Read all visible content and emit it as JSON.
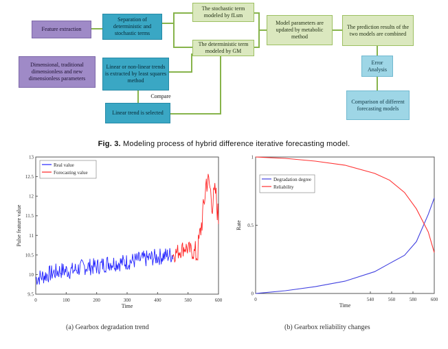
{
  "flowchart": {
    "feature_extraction": "Feature extraction",
    "parameters": "Dimensional, traditional dimensionless and new dimensionless parameters",
    "separation": "Separation of deterministic and stochastic terms",
    "linear_fit": "Linear or non-linear trends is extracted by least squares method",
    "compare": "Compare",
    "linear_selected": "Linear trend is selected",
    "stochastic_term": "The stochastic term modeled by fLsm",
    "deterministic_term": "The deterministic term modeled by GM",
    "update": "Model parameters are updated by metabolic method",
    "combined": "The prediction results of the two models are combined",
    "error_analysis": "Error Analysis",
    "comparison": "Comparison of different forecasting models"
  },
  "fig3_caption": {
    "label": "Fig. 3.",
    "text": "Modeling process of hybrid difference iterative forecasting model."
  },
  "colors": {
    "real": "#2323ff",
    "forecast": "#ff2020",
    "degradation": "#4040e0",
    "reliability": "#ff3030"
  },
  "chart_data": [
    {
      "type": "line",
      "ylabel": "Pulse feature value",
      "xlabel": "Time",
      "xlim": [
        0,
        600
      ],
      "ylim": [
        9.5,
        13
      ],
      "xticks": [
        "0",
        "100",
        "200",
        "300",
        "400",
        "500",
        "600"
      ],
      "yticks": [
        "9.5",
        "10",
        "10.5",
        "11",
        "11.5",
        "12",
        "12.5",
        "13"
      ],
      "legend": "top-left",
      "series": [
        {
          "name": "Real value",
          "color": "#2323ff",
          "x": [
            0,
            40,
            80,
            120,
            160,
            200,
            240,
            280,
            320,
            360,
            400,
            440,
            450
          ],
          "y": [
            9.9,
            10.0,
            10.1,
            10.1,
            10.2,
            10.2,
            10.3,
            10.3,
            10.35,
            10.4,
            10.45,
            10.5,
            10.5
          ]
        },
        {
          "name": "Forecasting value",
          "color": "#ff2020",
          "x": [
            450,
            470,
            490,
            510,
            530,
            550,
            560,
            570,
            580,
            590,
            600
          ],
          "y": [
            10.5,
            10.6,
            10.7,
            10.6,
            10.5,
            11.6,
            12.4,
            12.3,
            11.8,
            12.1,
            11.4
          ]
        }
      ],
      "caption": "(a) Gearbox degradation trend"
    },
    {
      "type": "line",
      "ylabel": "Rate",
      "xlabel": "Time",
      "xlim": [
        0,
        600
      ],
      "ylim": [
        0,
        1
      ],
      "xticks": [
        "0",
        "540",
        "560",
        "580",
        "600"
      ],
      "yticks": [
        "0",
        "0.5",
        "1"
      ],
      "legend": "upper-left",
      "series": [
        {
          "name": "Degradation degree",
          "color": "#4040e0",
          "x": [
            0,
            100,
            200,
            300,
            400,
            450,
            500,
            540,
            580,
            600
          ],
          "y": [
            0.0,
            0.02,
            0.05,
            0.09,
            0.16,
            0.22,
            0.28,
            0.38,
            0.58,
            0.7
          ]
        },
        {
          "name": "Reliability",
          "color": "#ff3030",
          "x": [
            0,
            100,
            200,
            300,
            400,
            450,
            500,
            540,
            580,
            600
          ],
          "y": [
            1.0,
            0.99,
            0.97,
            0.94,
            0.88,
            0.83,
            0.74,
            0.62,
            0.45,
            0.3
          ]
        }
      ],
      "caption": "(b) Gearbox reliability changes"
    }
  ]
}
